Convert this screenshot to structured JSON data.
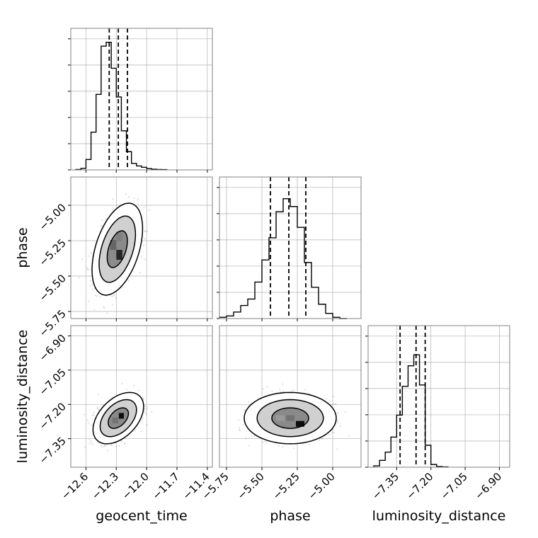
{
  "chart_data": {
    "type": "corner",
    "parameters": [
      {
        "name": "geocent_time",
        "label": "geocent_time",
        "range": [
          -12.75,
          -11.35
        ],
        "ticks": [
          "−12.6",
          "−12.3",
          "−12.0",
          "−11.7",
          "−11.4"
        ],
        "tick_values": [
          -12.6,
          -12.3,
          -12.0,
          -11.7,
          -11.4
        ]
      },
      {
        "name": "phase",
        "label": "phase",
        "range": [
          -5.8,
          -4.8
        ],
        "ticks": [
          "−5.75",
          "−5.50",
          "−5.25",
          "−5.00"
        ],
        "tick_values": [
          -5.75,
          -5.5,
          -5.25,
          -5.0
        ]
      },
      {
        "name": "luminosity_distance",
        "label": "luminosity_distance",
        "range": [
          -7.475,
          -6.855
        ],
        "ticks": [
          "−7.35",
          "−7.20",
          "−7.05",
          "−6.90"
        ],
        "tick_values": [
          -7.35,
          -7.2,
          -7.05,
          -6.9
        ]
      }
    ],
    "histograms": [
      {
        "param": "geocent_time",
        "bin_edges": [
          -12.7,
          -12.65,
          -12.6,
          -12.55,
          -12.5,
          -12.45,
          -12.4,
          -12.35,
          -12.3,
          -12.25,
          -12.2,
          -12.15,
          -12.1,
          -12.05,
          -12.0,
          -11.95,
          -11.9,
          -11.85,
          -11.8
        ],
        "counts": [
          0.3,
          1.2,
          8,
          29,
          58,
          95,
          98,
          78,
          56,
          30,
          14,
          5,
          3,
          2,
          1,
          0.5,
          0.3,
          0.2
        ],
        "quantiles": [
          -12.37,
          -12.28,
          -12.19
        ],
        "ymax": 100
      },
      {
        "param": "phase",
        "bin_edges": [
          -5.8,
          -5.75,
          -5.7,
          -5.65,
          -5.6,
          -5.55,
          -5.5,
          -5.45,
          -5.4,
          -5.35,
          -5.3,
          -5.25,
          -5.2,
          -5.15,
          -5.1,
          -5.05,
          -5.0,
          -4.95,
          -4.9
        ],
        "counts": [
          1,
          2,
          5,
          10,
          15,
          28,
          45,
          62,
          82,
          92,
          86,
          70,
          43,
          24,
          11,
          4,
          1,
          0
        ],
        "quantiles": [
          -5.44,
          -5.31,
          -5.19
        ],
        "ymax": 100
      },
      {
        "param": "luminosity_distance",
        "bin_edges": [
          -7.45,
          -7.425,
          -7.4,
          -7.375,
          -7.35,
          -7.325,
          -7.3,
          -7.275,
          -7.25,
          -7.225,
          -7.2,
          -7.175,
          -7.15,
          -7.125
        ],
        "counts": [
          1,
          5,
          11,
          22,
          38,
          59,
          74,
          82,
          60,
          16,
          2,
          0.5,
          0.2
        ],
        "quantiles": [
          -7.335,
          -7.265,
          -7.225
        ],
        "ymax": 95
      }
    ],
    "scatter_2d": [
      {
        "x_param": "geocent_time",
        "y_param": "phase",
        "center": [
          -12.29,
          -5.31
        ],
        "sd": [
          0.1,
          0.13
        ],
        "rho": 0.45,
        "contour_levels": [
          1.0,
          1.8,
          2.5
        ],
        "density_cells": [
          {
            "x": -12.27,
            "y": -5.35,
            "w": 0.06,
            "h": 0.07,
            "shade": 0.85
          },
          {
            "x": -12.33,
            "y": -5.28,
            "w": 0.06,
            "h": 0.07,
            "shade": 0.6
          },
          {
            "x": -12.27,
            "y": -5.22,
            "w": 0.06,
            "h": 0.07,
            "shade": 0.5
          },
          {
            "x": -12.33,
            "y": -5.4,
            "w": 0.06,
            "h": 0.06,
            "shade": 0.45
          }
        ]
      },
      {
        "x_param": "geocent_time",
        "y_param": "luminosity_distance",
        "center": [
          -12.28,
          -7.26
        ],
        "sd": [
          0.1,
          0.045
        ],
        "rho": 0.45,
        "contour_levels": [
          1.0,
          1.8,
          2.5
        ],
        "density_cells": [
          {
            "x": -12.25,
            "y": -7.25,
            "w": 0.05,
            "h": 0.025,
            "shade": 0.95
          },
          {
            "x": -12.31,
            "y": -7.27,
            "w": 0.06,
            "h": 0.025,
            "shade": 0.55
          }
        ]
      },
      {
        "x_param": "phase",
        "y_param": "luminosity_distance",
        "center": [
          -5.3,
          -7.26
        ],
        "sd": [
          0.13,
          0.045
        ],
        "rho": 0.0,
        "contour_levels": [
          1.0,
          1.8,
          2.5
        ],
        "density_cells": [
          {
            "x": -5.23,
            "y": -7.285,
            "w": 0.06,
            "h": 0.025,
            "shade": 0.95
          },
          {
            "x": -5.3,
            "y": -7.26,
            "w": 0.06,
            "h": 0.025,
            "shade": 0.55
          },
          {
            "x": -5.37,
            "y": -7.26,
            "w": 0.06,
            "h": 0.025,
            "shade": 0.4
          }
        ]
      }
    ],
    "grid": true,
    "colors": {
      "line": "#000000",
      "grid": "#b0b0b0",
      "scatter": "#808080",
      "frame": "#808080"
    }
  }
}
